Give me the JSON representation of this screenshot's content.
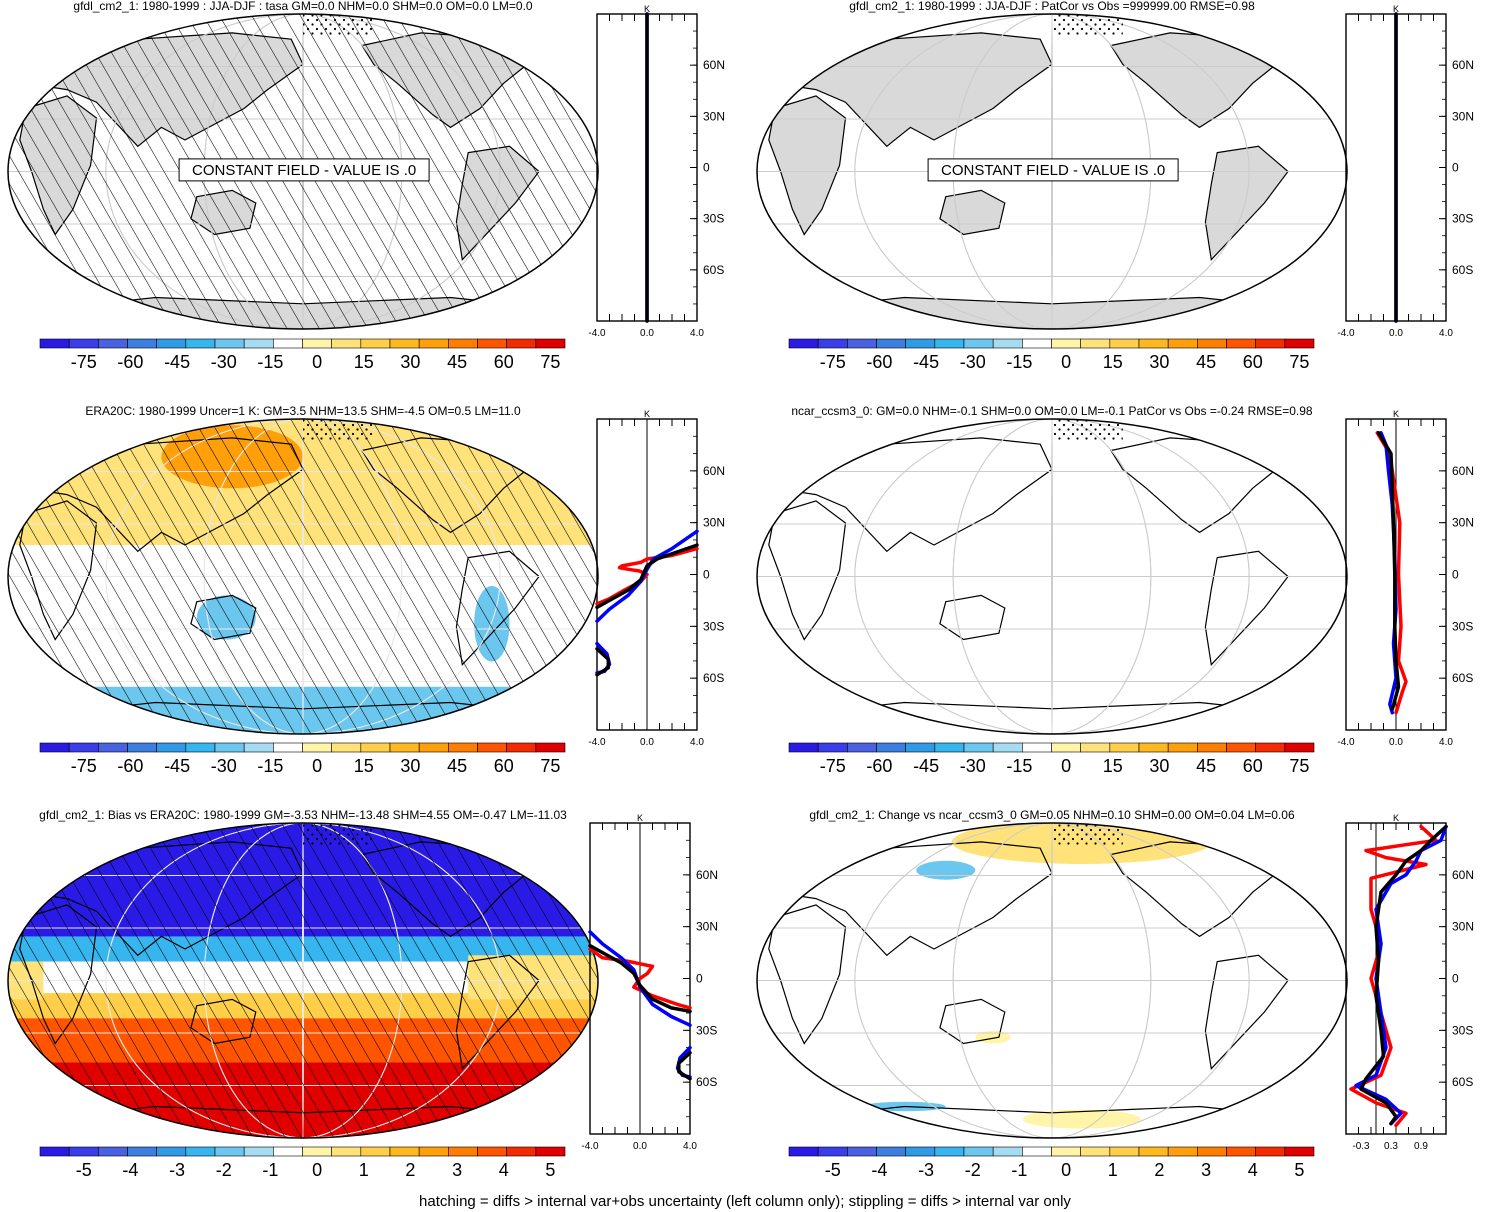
{
  "footer": "hatching = diffs > internal var+obs uncertainty (left column only); stippling = diffs > internal var only",
  "colors": {
    "land": "#d9d9d9",
    "ocean": "#ffffff",
    "hatch": "#000000",
    "profile_red": "#ff0000",
    "profile_blue": "#0000ff",
    "profile_black": "#000000",
    "scale": [
      "#2a1ae6",
      "#3a3de9",
      "#4a62e0",
      "#3d7fe0",
      "#2f9be6",
      "#37b5ef",
      "#6cc7ef",
      "#a6dcf2",
      "#ffffff",
      "#fff4a8",
      "#ffe27a",
      "#ffcf4a",
      "#ffb81f",
      "#ff9f0a",
      "#ff7d00",
      "#ff5500",
      "#f42b00",
      "#e00000"
    ]
  },
  "panels": [
    {
      "id": "p1",
      "title": "gfdl_cm2_1: 1980-1999 : JJA-DJF : tasa GM=0.0 NHM=0.0 SHM=0.0 OM=0.0 LM=0.0",
      "annotation": "CONSTANT FIELD - VALUE IS .0",
      "shading": "constant",
      "hatched": true,
      "stippled": true,
      "colorbar": [
        "-75",
        "-60",
        "-45",
        "-30",
        "-15",
        "0",
        "15",
        "30",
        "45",
        "60",
        "75"
      ],
      "profile": {
        "unit": "K",
        "lat_labels": [
          "60N",
          "30N",
          "0",
          "30S",
          "60S"
        ],
        "x_labels": [
          "-4.0",
          "0.0",
          "4.0"
        ],
        "xlim": [
          -4,
          4
        ],
        "series": [
          {
            "color": "#0000ff",
            "points": [
              [
                0,
                90
              ],
              [
                0,
                -90
              ]
            ]
          },
          {
            "color": "#000000",
            "points": [
              [
                0,
                90
              ],
              [
                0,
                -90
              ]
            ]
          }
        ]
      }
    },
    {
      "id": "p2",
      "title": "gfdl_cm2_1: 1980-1999 : JJA-DJF : PatCor vs Obs =999999.00 RMSE=0.98",
      "annotation": "CONSTANT FIELD - VALUE IS .0",
      "shading": "constant",
      "hatched": false,
      "stippled": true,
      "colorbar": [
        "-75",
        "-60",
        "-45",
        "-30",
        "-15",
        "0",
        "15",
        "30",
        "45",
        "60",
        "75"
      ],
      "profile": {
        "unit": "K",
        "lat_labels": [
          "60N",
          "30N",
          "0",
          "30S",
          "60S"
        ],
        "x_labels": [
          "-4.0",
          "0.0",
          "4.0"
        ],
        "xlim": [
          -4,
          4
        ],
        "series": [
          {
            "color": "#0000ff",
            "points": [
              [
                0,
                90
              ],
              [
                0,
                -90
              ]
            ]
          },
          {
            "color": "#000000",
            "points": [
              [
                0,
                90
              ],
              [
                0,
                -90
              ]
            ]
          }
        ]
      }
    },
    {
      "id": "p3",
      "title": "ERA20C: 1980-1999 Uncer=1 K: GM=3.5 NHM=13.5 SHM=-4.5 OM=0.5 LM=11.0",
      "annotation": "",
      "shading": "era",
      "hatched": true,
      "stippled": true,
      "colorbar": [
        "-75",
        "-60",
        "-45",
        "-30",
        "-15",
        "0",
        "15",
        "30",
        "45",
        "60",
        "75"
      ],
      "profile": {
        "unit": "K",
        "lat_labels": [
          "60N",
          "30N",
          "0",
          "30S",
          "60S"
        ],
        "x_labels": [
          "-4.0",
          "0.0",
          "4.0"
        ],
        "xlim": [
          -4,
          4
        ],
        "series": [
          {
            "color": "#ff0000",
            "points": [
              [
                -4,
                -17
              ],
              [
                -3,
                -14
              ],
              [
                -1.8,
                -9
              ],
              [
                -0.5,
                -4
              ],
              [
                0,
                0
              ],
              [
                -0.6,
                2
              ],
              [
                -1.5,
                3
              ],
              [
                -2.2,
                4
              ],
              [
                -2,
                5
              ],
              [
                -0.5,
                7
              ],
              [
                0,
                9
              ],
              [
                2,
                11
              ],
              [
                4,
                15
              ]
            ]
          },
          {
            "color": "#0000ff",
            "points": [
              [
                -4,
                -27
              ],
              [
                -3,
                -20
              ],
              [
                -1.5,
                -12
              ],
              [
                -0.5,
                -4
              ],
              [
                0,
                3
              ],
              [
                0.5,
                9
              ],
              [
                2,
                15
              ],
              [
                4,
                25
              ]
            ]
          },
          {
            "color": "#000000",
            "points": [
              [
                -4,
                -19
              ],
              [
                -3,
                -15
              ],
              [
                -1.5,
                -9
              ],
              [
                -0.5,
                -3
              ],
              [
                0,
                5
              ],
              [
                0.8,
                9
              ],
              [
                2,
                12
              ],
              [
                4,
                17
              ]
            ]
          },
          {
            "color": "#0000ff",
            "points": [
              [
                -4,
                -40
              ],
              [
                -3.2,
                -46
              ],
              [
                -3,
                -52
              ],
              [
                -3.4,
                -56
              ],
              [
                -4,
                -57
              ]
            ]
          },
          {
            "color": "#000000",
            "points": [
              [
                -4,
                -43
              ],
              [
                -3.1,
                -49
              ],
              [
                -3.1,
                -54
              ],
              [
                -4,
                -58
              ]
            ]
          }
        ]
      }
    },
    {
      "id": "p4",
      "title": "ncar_ccsm3_0: GM=0.0 NHM=-0.1 SHM=0.0 OM=0.0 LM=-0.1 PatCor vs Obs =-0.24 RMSE=0.98",
      "annotation": "",
      "shading": "none",
      "hatched": false,
      "stippled": true,
      "colorbar": [
        "-75",
        "-60",
        "-45",
        "-30",
        "-15",
        "0",
        "15",
        "30",
        "45",
        "60",
        "75"
      ],
      "profile": {
        "unit": "K",
        "lat_labels": [
          "60N",
          "30N",
          "0",
          "30S",
          "60S"
        ],
        "x_labels": [
          "-4.0",
          "0.0",
          "4.0"
        ],
        "xlim": [
          -4,
          4
        ],
        "series": [
          {
            "color": "#ff0000",
            "points": [
              [
                -1.5,
                82
              ],
              [
                -0.5,
                70
              ],
              [
                -0.1,
                50
              ],
              [
                0.3,
                30
              ],
              [
                0.2,
                0
              ],
              [
                0.4,
                -30
              ],
              [
                0.2,
                -50
              ],
              [
                0.8,
                -62
              ],
              [
                0.5,
                -68
              ],
              [
                0,
                -80
              ]
            ]
          },
          {
            "color": "#0000ff",
            "points": [
              [
                -1.2,
                82
              ],
              [
                -0.8,
                75
              ],
              [
                -0.6,
                60
              ],
              [
                -0.3,
                40
              ],
              [
                -0.1,
                10
              ],
              [
                0,
                -20
              ],
              [
                -0.2,
                -40
              ],
              [
                0,
                -60
              ],
              [
                -0.5,
                -75
              ],
              [
                -0.3,
                -80
              ]
            ]
          },
          {
            "color": "#000000",
            "points": [
              [
                -1.4,
                82
              ],
              [
                -0.4,
                70
              ],
              [
                -0.3,
                50
              ],
              [
                -0.2,
                30
              ],
              [
                -0.1,
                0
              ],
              [
                -0.1,
                -30
              ],
              [
                0,
                -50
              ],
              [
                0.2,
                -65
              ],
              [
                -0.3,
                -78
              ]
            ]
          }
        ]
      }
    },
    {
      "id": "p5",
      "title": "gfdl_cm2_1: Bias vs ERA20C: 1980-1999 GM=-3.53 NHM=-13.48 SHM=4.55 OM=-0.47 LM=-11.03",
      "annotation": "",
      "shading": "bias",
      "hatched": true,
      "stippled": true,
      "colorbar": [
        "-5",
        "-4",
        "-3",
        "-2",
        "-1",
        "0",
        "1",
        "2",
        "3",
        "4",
        "5"
      ],
      "profile": {
        "unit": "K",
        "lat_labels": [
          "60N",
          "30N",
          "0",
          "30S",
          "60S"
        ],
        "x_labels": [
          "-4.0",
          "0.0",
          "4.0"
        ],
        "xlim": [
          -4,
          4
        ],
        "series": [
          {
            "color": "#ff0000",
            "points": [
              [
                -4,
                17
              ],
              [
                -3,
                12
              ],
              [
                -1,
                10
              ],
              [
                1,
                7
              ],
              [
                0.6,
                3
              ],
              [
                0,
                0
              ],
              [
                -0.5,
                -5
              ],
              [
                1,
                -10
              ],
              [
                3,
                -15
              ],
              [
                4,
                -17
              ]
            ]
          },
          {
            "color": "#0000ff",
            "points": [
              [
                -4,
                27
              ],
              [
                -3,
                20
              ],
              [
                -1.5,
                12
              ],
              [
                -0.5,
                5
              ],
              [
                0,
                -5
              ],
              [
                1,
                -15
              ],
              [
                2.5,
                -22
              ],
              [
                4,
                -27
              ]
            ]
          },
          {
            "color": "#000000",
            "points": [
              [
                -4,
                19
              ],
              [
                -3,
                15
              ],
              [
                -1.5,
                9
              ],
              [
                -0.5,
                3
              ],
              [
                0,
                -4
              ],
              [
                1,
                -12
              ],
              [
                2.5,
                -17
              ],
              [
                4,
                -19
              ]
            ]
          },
          {
            "color": "#0000ff",
            "points": [
              [
                4,
                -40
              ],
              [
                3.2,
                -46
              ],
              [
                3,
                -52
              ],
              [
                3.4,
                -56
              ],
              [
                4,
                -57
              ]
            ]
          },
          {
            "color": "#000000",
            "points": [
              [
                4,
                -43
              ],
              [
                3.1,
                -49
              ],
              [
                3.1,
                -54
              ],
              [
                4,
                -58
              ]
            ]
          }
        ]
      }
    },
    {
      "id": "p6",
      "title": "gfdl_cm2_1: Change vs ncar_ccsm3_0 GM=0.05 NHM=0.10 SHM=0.00 OM=0.04 LM=0.06",
      "annotation": "",
      "shading": "change",
      "hatched": false,
      "stippled": true,
      "colorbar": [
        "-5",
        "-4",
        "-3",
        "-2",
        "-1",
        "0",
        "1",
        "2",
        "3",
        "4",
        "5"
      ],
      "profile": {
        "unit": "K",
        "lat_labels": [
          "60N",
          "30N",
          "0",
          "30S",
          "60S"
        ],
        "x_labels": [
          "-0.3",
          "0.3",
          "0.9"
        ],
        "xlim": [
          -0.6,
          1.4
        ],
        "series": [
          {
            "color": "#ff0000",
            "points": [
              [
                0.9,
                88
              ],
              [
                1.2,
                80
              ],
              [
                -0.2,
                74
              ],
              [
                0.2,
                70
              ],
              [
                1.0,
                66
              ],
              [
                -0.1,
                58
              ],
              [
                -0.1,
                40
              ],
              [
                0.1,
                20
              ],
              [
                -0.1,
                0
              ],
              [
                0.1,
                -20
              ],
              [
                0.3,
                -40
              ],
              [
                0.1,
                -56
              ],
              [
                -0.5,
                -64
              ],
              [
                0.0,
                -72
              ],
              [
                0.6,
                -78
              ],
              [
                0.4,
                -85
              ]
            ]
          },
          {
            "color": "#0000ff",
            "points": [
              [
                1.4,
                88
              ],
              [
                1.3,
                80
              ],
              [
                0.9,
                74
              ],
              [
                0.8,
                68
              ],
              [
                0.6,
                60
              ],
              [
                0.3,
                55
              ],
              [
                0.0,
                40
              ],
              [
                0.1,
                20
              ],
              [
                0.0,
                0
              ],
              [
                0.1,
                -20
              ],
              [
                0.2,
                -40
              ],
              [
                0.0,
                -56
              ],
              [
                -0.4,
                -62
              ],
              [
                0.2,
                -70
              ],
              [
                0.5,
                -78
              ],
              [
                0.3,
                -84
              ]
            ]
          },
          {
            "color": "#000000",
            "points": [
              [
                1.4,
                88
              ],
              [
                1.1,
                80
              ],
              [
                0.9,
                74
              ],
              [
                0.6,
                68
              ],
              [
                0.4,
                60
              ],
              [
                0.1,
                50
              ],
              [
                0.0,
                30
              ],
              [
                0.05,
                10
              ],
              [
                0.0,
                -10
              ],
              [
                0.1,
                -30
              ],
              [
                0.15,
                -45
              ],
              [
                -0.2,
                -58
              ],
              [
                -0.3,
                -64
              ],
              [
                0.2,
                -72
              ],
              [
                0.4,
                -80
              ],
              [
                0.3,
                -84
              ]
            ]
          }
        ]
      }
    }
  ]
}
